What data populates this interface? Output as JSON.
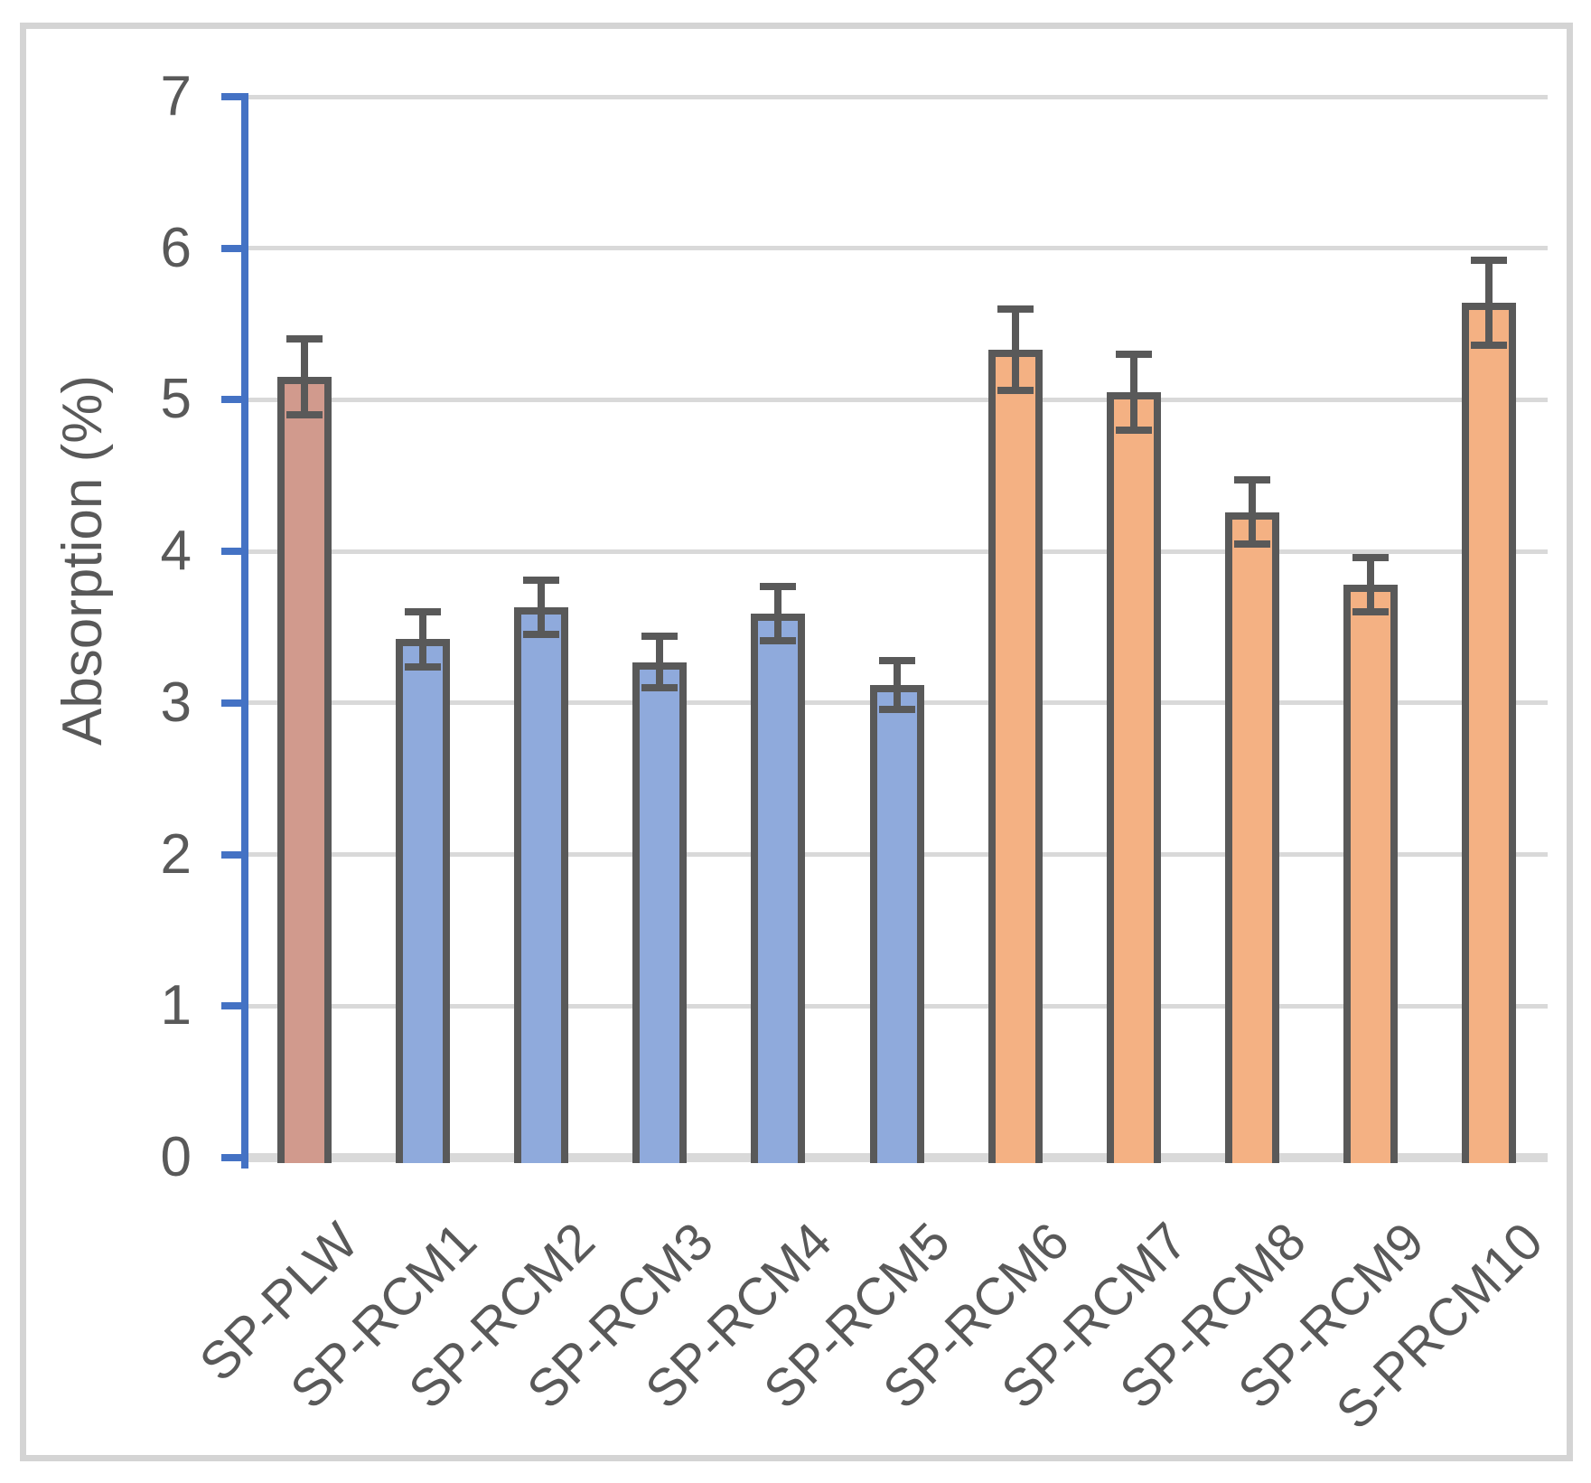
{
  "chart_data": {
    "type": "bar",
    "title": "",
    "xlabel": "",
    "ylabel": "Absorption (%)",
    "ylim": [
      0,
      7
    ],
    "ytick_values": [
      0,
      1,
      2,
      3,
      4,
      5,
      6,
      7
    ],
    "grid": true,
    "legend_position": "none",
    "categories": [
      "SP-PLW",
      "SP-RCM1",
      "SP-RCM2",
      "SP-RCM3",
      "SP-RCM4",
      "SP-RCM5",
      "SP-RCM6",
      "SP-RCM7",
      "SP-RCM8",
      "SP-RCM9",
      "S-PRCM10"
    ],
    "series": [
      {
        "name": "Absorption (%)",
        "values": [
          5.15,
          3.42,
          3.63,
          3.27,
          3.59,
          3.12,
          5.33,
          5.05,
          4.26,
          3.78,
          5.64
        ],
        "errors": [
          0.25,
          0.18,
          0.18,
          0.17,
          0.18,
          0.16,
          0.27,
          0.25,
          0.21,
          0.18,
          0.28
        ]
      }
    ],
    "bar_colors": [
      "#d19a8d",
      "#8faadc",
      "#8faadc",
      "#8faadc",
      "#8faadc",
      "#8faadc",
      "#f4b183",
      "#f4b183",
      "#f4b183",
      "#f4b183",
      "#f4b183"
    ],
    "colors": {
      "rose_bar": "#d19a8d",
      "blue_bar": "#8faadc",
      "orange_bar": "#f4b183",
      "bar_border": "#595959",
      "error_bar": "#595959",
      "axis_line": "#4472c4",
      "gridline": "#d9d9d9",
      "zero_line": "#d9d9d9",
      "text": "#595959",
      "frame_border": "#d4d4d4",
      "background": "#ffffff"
    }
  }
}
